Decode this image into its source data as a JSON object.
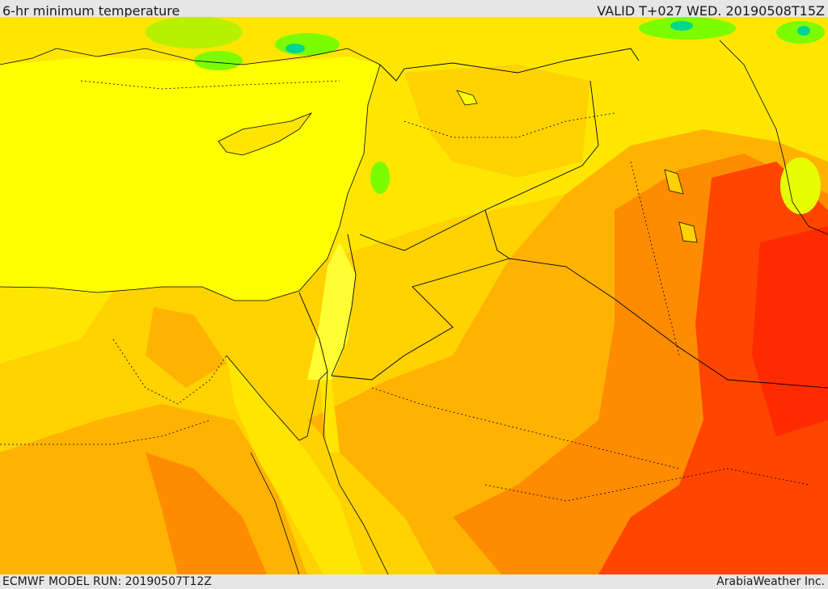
{
  "header": {
    "title": "6-hr minimum temperature",
    "valid": "VALID T+027 WED. 20190508T15Z"
  },
  "footer": {
    "model_run": "ECMWF MODEL RUN: 20190507T12Z",
    "credit": "ArabiaWeather Inc."
  },
  "palette": {
    "sea": "#ffff00",
    "land_yellow": "#ffe600",
    "land_gold": "#ffd200",
    "land_orange": "#ffb300",
    "land_darkorange": "#ff8c00",
    "land_red": "#ff4500",
    "land_deepred": "#ff2a00",
    "cool_green": "#7cfc00",
    "cool_teal": "#00d68f"
  }
}
